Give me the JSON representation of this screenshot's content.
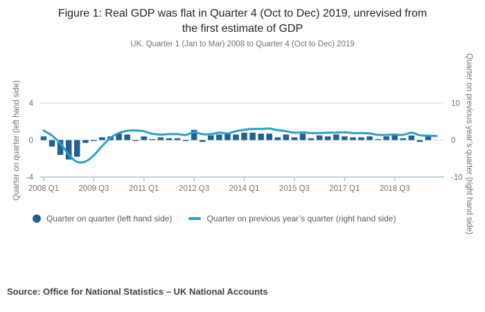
{
  "title": {
    "line1": "Figure 1: Real GDP was flat in Quarter 4 (Oct to Dec) 2019, unrevised from",
    "line2": "the first estimate of GDP"
  },
  "subtitle": "UK, Quarter 1 (Jan to Mar) 2008 to Quarter 4 (Oct to Dec) 2019",
  "source": "Source: Office for National Statistics – UK National Accounts",
  "legend": {
    "bar_label": "Quarter on quarter (left hand side)",
    "line_label": "Quarter on previous year’s quarter (right hand side)"
  },
  "axes": {
    "left_title": "Quarter on quarter (left hand side)",
    "right_title": "Quarter on previous year’s quarter (right hand side)",
    "left_ticks": [
      "4",
      "0",
      "-4"
    ],
    "right_ticks": [
      "10",
      "0",
      "-10"
    ],
    "x_tick_labels": [
      "2008 Q1",
      "2009 Q3",
      "2011 Q1",
      "2012 Q3",
      "2014 Q1",
      "2015 Q3",
      "2017 Q1",
      "2018 Q3"
    ]
  },
  "colors": {
    "bar": "#206095",
    "line": "#27A0CC",
    "grid": "#d9d9d9",
    "axis_line": "#a9c6d9",
    "tick_text": "#707071"
  },
  "chart_data": {
    "type": "bar-line-combo",
    "title": "Figure 1: Real GDP was flat in Quarter 4 (Oct to Dec) 2019, unrevised from the first estimate of GDP",
    "x": [
      "2008 Q1",
      "2008 Q2",
      "2008 Q3",
      "2008 Q4",
      "2009 Q1",
      "2009 Q2",
      "2009 Q3",
      "2009 Q4",
      "2010 Q1",
      "2010 Q2",
      "2010 Q3",
      "2010 Q4",
      "2011 Q1",
      "2011 Q2",
      "2011 Q3",
      "2011 Q4",
      "2012 Q1",
      "2012 Q2",
      "2012 Q3",
      "2012 Q4",
      "2013 Q1",
      "2013 Q2",
      "2013 Q3",
      "2013 Q4",
      "2014 Q1",
      "2014 Q2",
      "2014 Q3",
      "2014 Q4",
      "2015 Q1",
      "2015 Q2",
      "2015 Q3",
      "2015 Q4",
      "2016 Q1",
      "2016 Q2",
      "2016 Q3",
      "2016 Q4",
      "2017 Q1",
      "2017 Q2",
      "2017 Q3",
      "2017 Q4",
      "2018 Q1",
      "2018 Q2",
      "2018 Q3",
      "2018 Q4",
      "2019 Q1",
      "2019 Q2",
      "2019 Q3",
      "2019 Q4"
    ],
    "visible_x_ticks": [
      0,
      6,
      12,
      18,
      24,
      30,
      36,
      42
    ],
    "series": [
      {
        "name": "Quarter on quarter (left hand side)",
        "render": "bar",
        "axis": "left",
        "values": [
          0.4,
          -0.7,
          -1.6,
          -2.1,
          -1.8,
          -0.3,
          -0.1,
          0.3,
          0.4,
          0.7,
          0.6,
          -0.1,
          0.4,
          0.1,
          0.3,
          0.2,
          0.2,
          -0.1,
          1.1,
          -0.2,
          0.5,
          0.6,
          0.8,
          0.6,
          0.8,
          0.8,
          0.7,
          0.7,
          0.3,
          0.6,
          0.3,
          0.7,
          0.2,
          0.5,
          0.4,
          0.6,
          0.4,
          0.3,
          0.3,
          0.4,
          0.1,
          0.4,
          0.5,
          0.2,
          0.5,
          -0.2,
          0.4,
          0.0
        ]
      },
      {
        "name": "Quarter on previous year’s quarter (right hand side)",
        "render": "line",
        "axis": "right",
        "values": [
          2.6,
          1.2,
          -0.9,
          -3.9,
          -5.9,
          -5.8,
          -4.1,
          -1.6,
          0.6,
          1.9,
          2.5,
          2.6,
          2.4,
          1.7,
          1.5,
          1.6,
          1.6,
          1.4,
          2.1,
          1.6,
          1.6,
          2.0,
          1.8,
          2.4,
          2.8,
          3.0,
          3.0,
          3.1,
          2.7,
          2.4,
          2.0,
          2.1,
          1.9,
          1.9,
          2.0,
          2.0,
          2.1,
          1.9,
          1.9,
          1.8,
          1.4,
          1.4,
          1.5,
          1.4,
          2.0,
          1.3,
          1.2,
          1.1
        ]
      }
    ],
    "left_ylim": [
      -4,
      4
    ],
    "right_ylim": [
      -10,
      10
    ],
    "xlabel": "",
    "ylabel_left": "Quarter on quarter (left hand side)",
    "ylabel_right": "Quarter on previous year’s quarter (right hand side)",
    "grid": true,
    "legend_position": "bottom"
  }
}
